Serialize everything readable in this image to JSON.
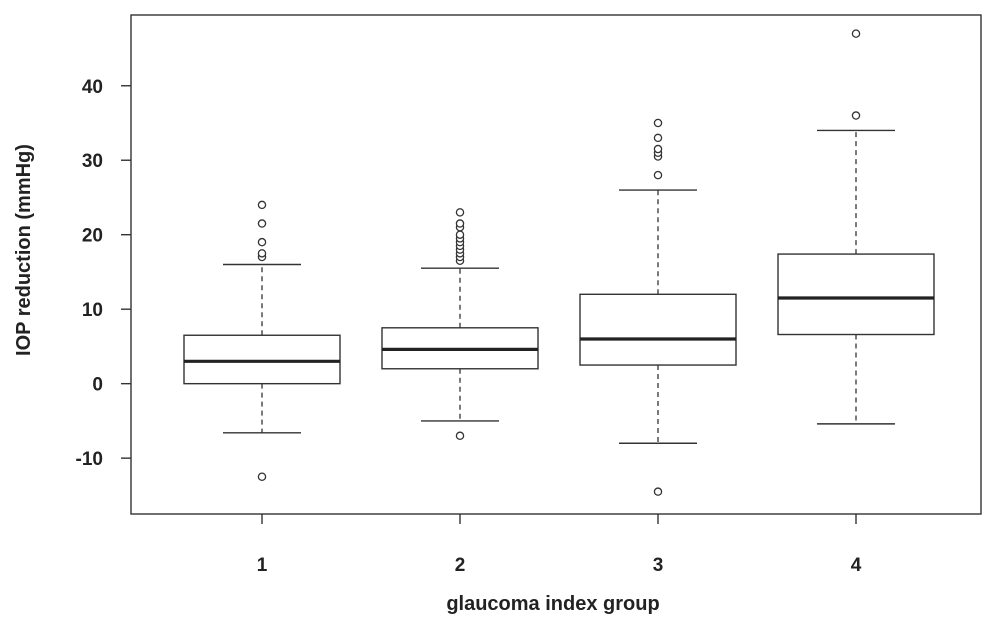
{
  "chart_data": {
    "type": "boxplot",
    "title": "",
    "xlabel": "glaucoma index group",
    "ylabel": "IOP reduction (mmHg)",
    "categories": [
      "1",
      "2",
      "3",
      "4"
    ],
    "y_ticks": [
      -10,
      0,
      10,
      20,
      30,
      40
    ],
    "y_tick_labels": [
      "-10",
      "0",
      "10",
      "20",
      "30",
      "40"
    ],
    "ylim": [
      -17.5,
      49.5
    ],
    "grid": false,
    "boxes": [
      {
        "group": "1",
        "whisker_low": -6.6,
        "q1": 0.0,
        "median": 3.0,
        "q3": 6.5,
        "whisker_high": 16.0,
        "outliers": [
          -12.5,
          17.0,
          17.5,
          19.0,
          21.5,
          24.0
        ]
      },
      {
        "group": "2",
        "whisker_low": -5.0,
        "q1": 2.0,
        "median": 4.6,
        "q3": 7.5,
        "whisker_high": 15.5,
        "outliers": [
          -7.0,
          16.5,
          17.0,
          17.5,
          18.0,
          18.5,
          19.0,
          19.5,
          20.0,
          21.0,
          21.5,
          23.0
        ]
      },
      {
        "group": "3",
        "whisker_low": -8.0,
        "q1": 2.5,
        "median": 6.0,
        "q3": 12.0,
        "whisker_high": 26.0,
        "outliers": [
          -14.5,
          28.0,
          30.5,
          31.0,
          31.5,
          33.0,
          35.0
        ]
      },
      {
        "group": "4",
        "whisker_low": -5.4,
        "q1": 6.6,
        "median": 11.5,
        "q3": 17.4,
        "whisker_high": 34.0,
        "outliers": [
          36.0,
          47.0
        ]
      }
    ]
  }
}
